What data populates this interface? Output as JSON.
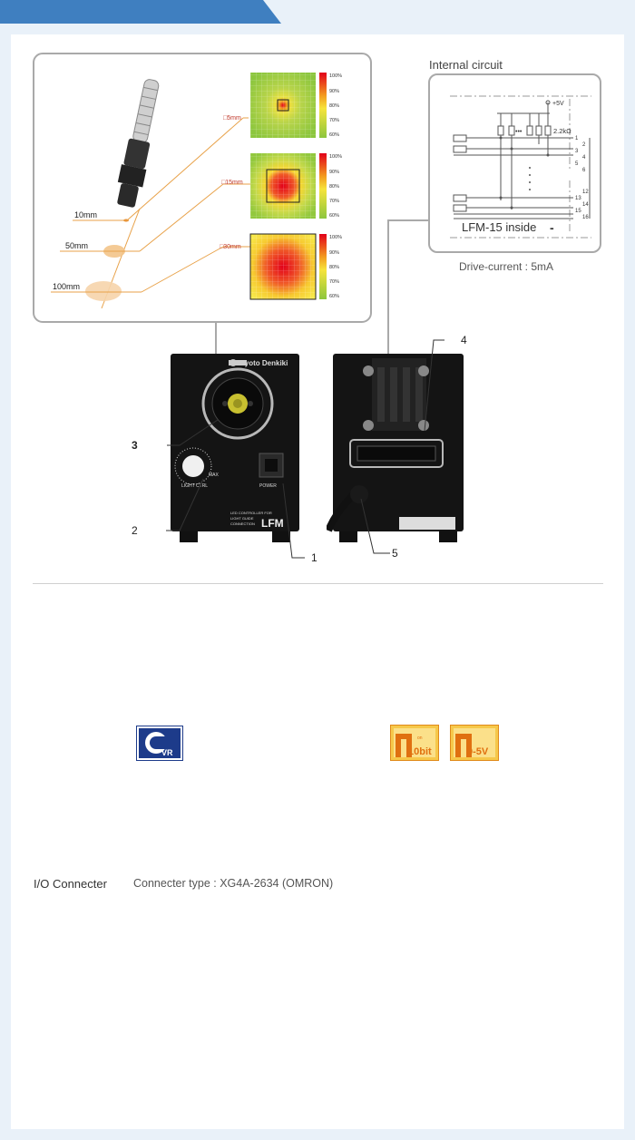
{
  "header": {
    "tab_color": "#3f7fc0",
    "bg_color": "#e9f1f9"
  },
  "beam": {
    "distances": [
      "10mm",
      "50mm",
      "100mm"
    ],
    "spots": [
      "□5mm",
      "□15mm",
      "□30mm"
    ],
    "scale_labels": [
      "100%",
      "90%",
      "80%",
      "70%",
      "60%"
    ]
  },
  "circuit": {
    "title": "Internal circuit",
    "supply": "+5V",
    "resistor": "2.2kΩ",
    "dots": "•••",
    "pins_top": [
      "1",
      "2",
      "3",
      "4",
      "5",
      "6"
    ],
    "pins_bottom": [
      "12",
      "13",
      "14",
      "15",
      "16"
    ],
    "inside_label": "LFM-15 inside",
    "minus": "-",
    "drive_current": "Drive-current : 5mA"
  },
  "device": {
    "brand": "Kyoto Denkiki",
    "max_label": "MAX",
    "knob_label": "LIGHT CTRL",
    "power_label": "POWER",
    "model_line1": "LED CONTROLLER FOR",
    "model_line2": "LIGHT GUIDE",
    "model_line3": "CONNECTION",
    "model": "LFM",
    "callouts": [
      "1",
      "2",
      "3",
      "4",
      "5"
    ]
  },
  "icons": {
    "vr": "VR",
    "bit": "10bit",
    "volt": "0-5V",
    "bit_small": "on"
  },
  "io": {
    "label": "I/O Connecter",
    "value": "Connecter type : XG4A-2634 (OMRON)"
  }
}
